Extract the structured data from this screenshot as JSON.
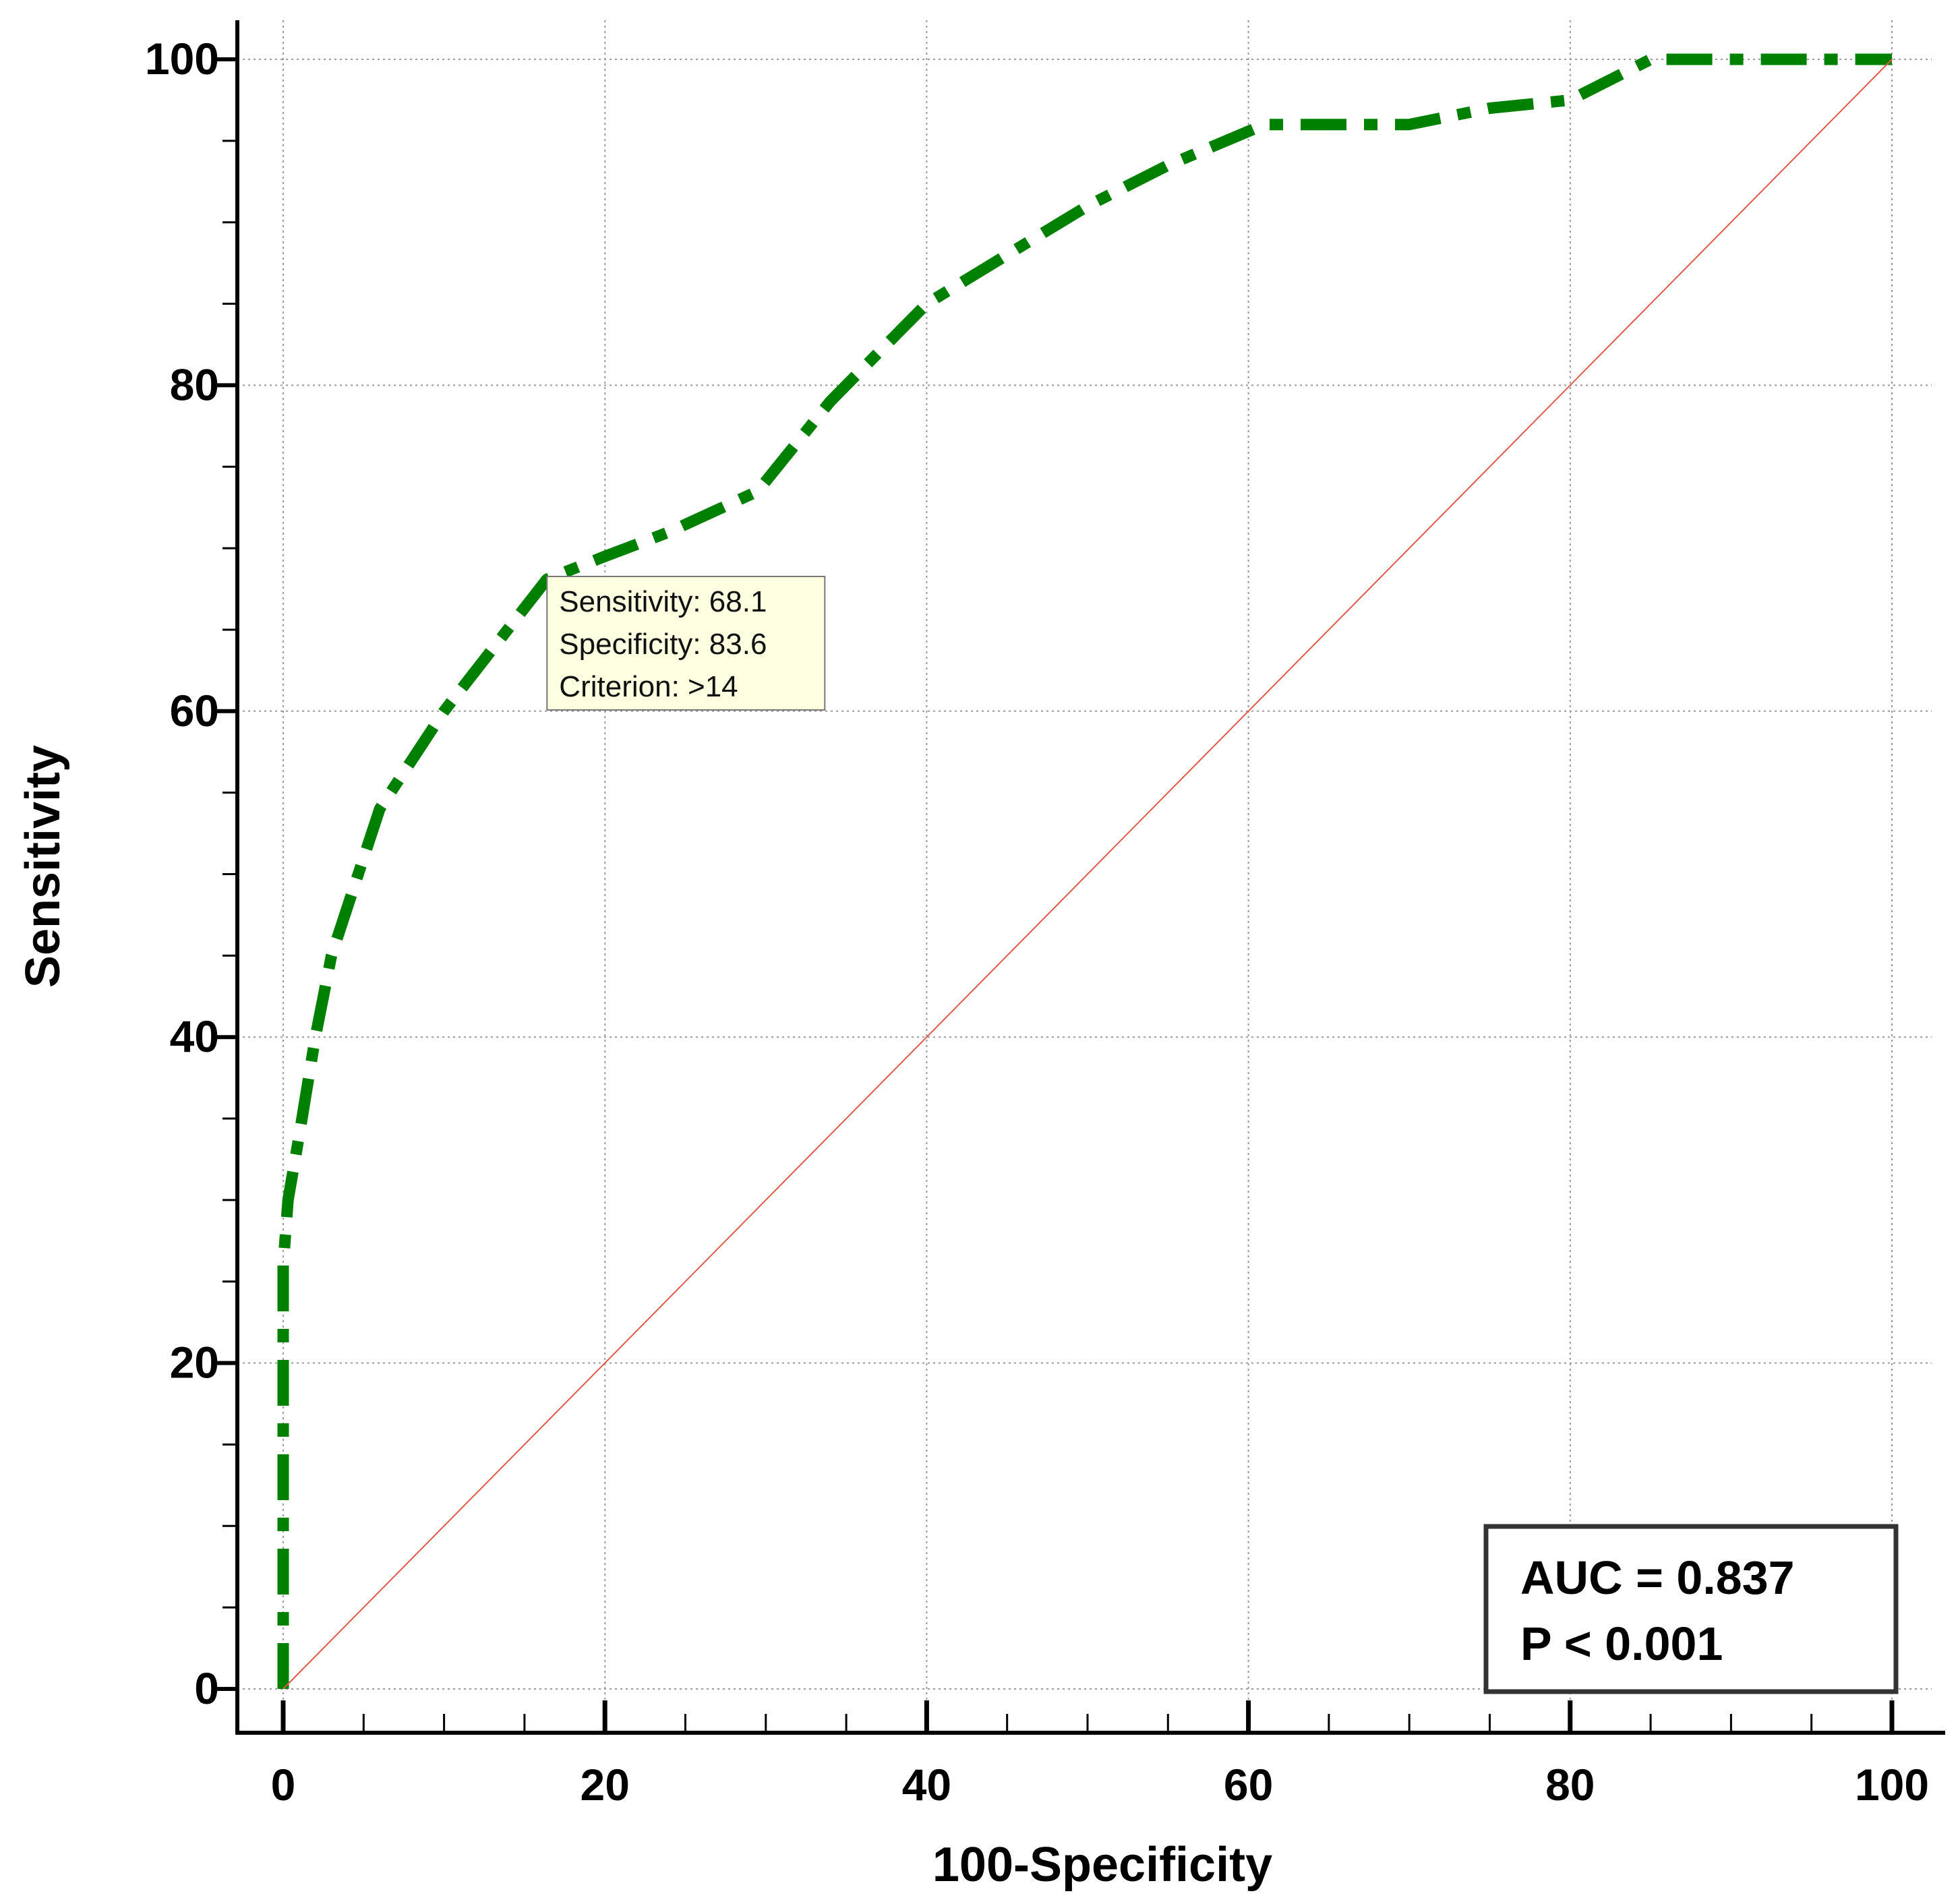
{
  "chart_data": {
    "type": "line",
    "title": "",
    "xlabel": "100-Specificity",
    "ylabel": "Sensitivity",
    "xlim": [
      0,
      100
    ],
    "ylim": [
      0,
      100
    ],
    "xticks": [
      0,
      20,
      40,
      60,
      80,
      100
    ],
    "yticks": [
      0,
      20,
      40,
      60,
      80,
      100
    ],
    "grid": true,
    "series": [
      {
        "color": "#008000",
        "line_style": "dash-dot",
        "x": [
          0,
          0,
          0,
          0.3,
          1,
          2,
          3,
          4,
          6,
          10,
          16.4,
          20,
          24,
          29.5,
          34,
          40,
          45,
          50,
          55,
          61,
          65,
          70,
          75,
          80,
          83,
          85,
          90,
          100
        ],
        "y": [
          0,
          15,
          26,
          30,
          34,
          40,
          45,
          48,
          54,
          60,
          68.1,
          69.5,
          71,
          73.5,
          79,
          85,
          88,
          91,
          93.5,
          96,
          96,
          96,
          97,
          97.5,
          99,
          100,
          100,
          100
        ]
      },
      {
        "color": "#e05a4a",
        "line_style": "solid",
        "x": [
          0,
          100
        ],
        "y": [
          0,
          100
        ]
      }
    ],
    "annotation": {
      "point": [
        16.4,
        68.1
      ],
      "lines": [
        "Sensitivity: 68.1",
        "Specificity: 83.6",
        "Criterion: >14"
      ]
    },
    "stats_box": {
      "lines": [
        "AUC = 0.837",
        "P < 0.001"
      ]
    }
  }
}
